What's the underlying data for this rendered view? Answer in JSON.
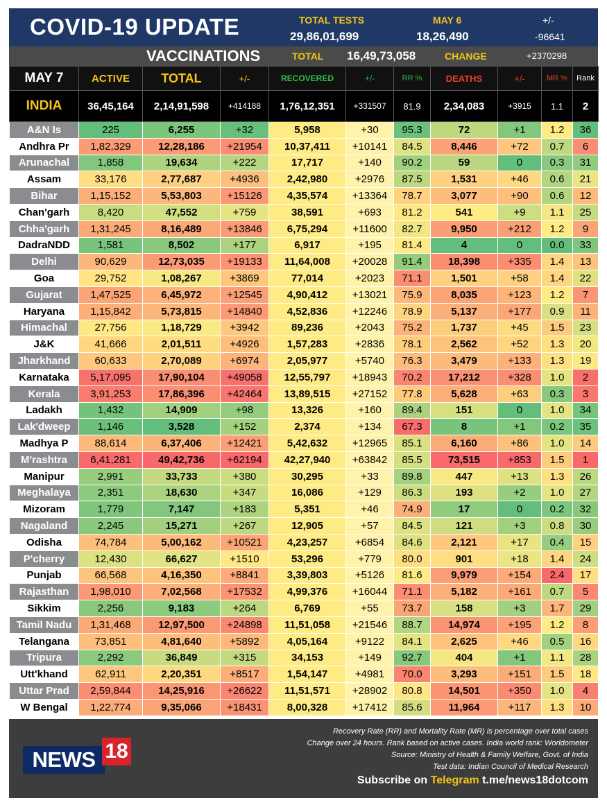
{
  "header": {
    "title": "COVID-19 UPDATE",
    "total_tests_label": "TOTAL TESTS",
    "total_tests": "29,86,01,699",
    "may6_label": "MAY 6",
    "may6_value": "18,26,490",
    "change_label": "+/-",
    "change_value": "-96641"
  },
  "vaccinations": {
    "title": "VACCINATIONS",
    "total_label": "TOTAL",
    "total": "16,49,73,058",
    "change_label": "CHANGE",
    "change": "+2370298"
  },
  "columns": {
    "date": "MAY 7",
    "active": "ACTIVE",
    "total": "TOTAL",
    "total_change": "+/-",
    "recovered": "RECOVERED",
    "recovered_change": "+/-",
    "rr": "RR %",
    "deaths": "DEATHS",
    "deaths_change": "+/-",
    "mr": "MR %",
    "rank": "Rank"
  },
  "india": {
    "name": "INDIA",
    "active": "36,45,164",
    "total": "2,14,91,598",
    "total_change": "+414188",
    "recovered": "1,76,12,351",
    "recovered_change": "+331507",
    "rr": "81.9",
    "deaths": "2,34,083",
    "deaths_change": "+3915",
    "mr": "1.1",
    "rank": "2"
  },
  "states": [
    {
      "name": "A&N Is",
      "active": "225",
      "total": "6,255",
      "total_change": "+32",
      "recovered": "5,958",
      "recovered_change": "+30",
      "rr": "95.3",
      "deaths": "72",
      "deaths_change": "+1",
      "mr": "1.2",
      "rank": "36"
    },
    {
      "name": "Andhra Pr",
      "active": "1,82,329",
      "total": "12,28,186",
      "total_change": "+21954",
      "recovered": "10,37,411",
      "recovered_change": "+10141",
      "rr": "84.5",
      "deaths": "8,446",
      "deaths_change": "+72",
      "mr": "0.7",
      "rank": "6"
    },
    {
      "name": "Arunachal",
      "active": "1,858",
      "total": "19,634",
      "total_change": "+222",
      "recovered": "17,717",
      "recovered_change": "+140",
      "rr": "90.2",
      "deaths": "59",
      "deaths_change": "0",
      "mr": "0.3",
      "rank": "31"
    },
    {
      "name": "Assam",
      "active": "33,176",
      "total": "2,77,687",
      "total_change": "+4936",
      "recovered": "2,42,980",
      "recovered_change": "+2976",
      "rr": "87.5",
      "deaths": "1,531",
      "deaths_change": "+46",
      "mr": "0.6",
      "rank": "21"
    },
    {
      "name": "Bihar",
      "active": "1,15,152",
      "total": "5,53,803",
      "total_change": "+15126",
      "recovered": "4,35,574",
      "recovered_change": "+13364",
      "rr": "78.7",
      "deaths": "3,077",
      "deaths_change": "+90",
      "mr": "0.6",
      "rank": "12"
    },
    {
      "name": "Chan'garh",
      "active": "8,420",
      "total": "47,552",
      "total_change": "+759",
      "recovered": "38,591",
      "recovered_change": "+693",
      "rr": "81.2",
      "deaths": "541",
      "deaths_change": "+9",
      "mr": "1.1",
      "rank": "25"
    },
    {
      "name": "Chha'garh",
      "active": "1,31,245",
      "total": "8,16,489",
      "total_change": "+13846",
      "recovered": "6,75,294",
      "recovered_change": "+11600",
      "rr": "82.7",
      "deaths": "9,950",
      "deaths_change": "+212",
      "mr": "1.2",
      "rank": "9"
    },
    {
      "name": "DadraNDD",
      "active": "1,581",
      "total": "8,502",
      "total_change": "+177",
      "recovered": "6,917",
      "recovered_change": "+195",
      "rr": "81.4",
      "deaths": "4",
      "deaths_change": "0",
      "mr": "0.0",
      "rank": "33"
    },
    {
      "name": "Delhi",
      "active": "90,629",
      "total": "12,73,035",
      "total_change": "+19133",
      "recovered": "11,64,008",
      "recovered_change": "+20028",
      "rr": "91.4",
      "deaths": "18,398",
      "deaths_change": "+335",
      "mr": "1.4",
      "rank": "13"
    },
    {
      "name": "Goa",
      "active": "29,752",
      "total": "1,08,267",
      "total_change": "+3869",
      "recovered": "77,014",
      "recovered_change": "+2023",
      "rr": "71.1",
      "deaths": "1,501",
      "deaths_change": "+58",
      "mr": "1.4",
      "rank": "22"
    },
    {
      "name": "Gujarat",
      "active": "1,47,525",
      "total": "6,45,972",
      "total_change": "+12545",
      "recovered": "4,90,412",
      "recovered_change": "+13021",
      "rr": "75.9",
      "deaths": "8,035",
      "deaths_change": "+123",
      "mr": "1.2",
      "rank": "7"
    },
    {
      "name": "Haryana",
      "active": "1,15,842",
      "total": "5,73,815",
      "total_change": "+14840",
      "recovered": "4,52,836",
      "recovered_change": "+12246",
      "rr": "78.9",
      "deaths": "5,137",
      "deaths_change": "+177",
      "mr": "0.9",
      "rank": "11"
    },
    {
      "name": "Himachal",
      "active": "27,756",
      "total": "1,18,729",
      "total_change": "+3942",
      "recovered": "89,236",
      "recovered_change": "+2043",
      "rr": "75.2",
      "deaths": "1,737",
      "deaths_change": "+45",
      "mr": "1.5",
      "rank": "23"
    },
    {
      "name": "J&K",
      "active": "41,666",
      "total": "2,01,511",
      "total_change": "+4926",
      "recovered": "1,57,283",
      "recovered_change": "+2836",
      "rr": "78.1",
      "deaths": "2,562",
      "deaths_change": "+52",
      "mr": "1.3",
      "rank": "20"
    },
    {
      "name": "Jharkhand",
      "active": "60,633",
      "total": "2,70,089",
      "total_change": "+6974",
      "recovered": "2,05,977",
      "recovered_change": "+5740",
      "rr": "76.3",
      "deaths": "3,479",
      "deaths_change": "+133",
      "mr": "1.3",
      "rank": "19"
    },
    {
      "name": "Karnataka",
      "active": "5,17,095",
      "total": "17,90,104",
      "total_change": "+49058",
      "recovered": "12,55,797",
      "recovered_change": "+18943",
      "rr": "70.2",
      "deaths": "17,212",
      "deaths_change": "+328",
      "mr": "1.0",
      "rank": "2"
    },
    {
      "name": "Kerala",
      "active": "3,91,253",
      "total": "17,86,396",
      "total_change": "+42464",
      "recovered": "13,89,515",
      "recovered_change": "+27152",
      "rr": "77.8",
      "deaths": "5,628",
      "deaths_change": "+63",
      "mr": "0.3",
      "rank": "3"
    },
    {
      "name": "Ladakh",
      "active": "1,432",
      "total": "14,909",
      "total_change": "+98",
      "recovered": "13,326",
      "recovered_change": "+160",
      "rr": "89.4",
      "deaths": "151",
      "deaths_change": "0",
      "mr": "1.0",
      "rank": "34"
    },
    {
      "name": "Lak'dweep",
      "active": "1,146",
      "total": "3,528",
      "total_change": "+152",
      "recovered": "2,374",
      "recovered_change": "+134",
      "rr": "67.3",
      "deaths": "8",
      "deaths_change": "+1",
      "mr": "0.2",
      "rank": "35"
    },
    {
      "name": "Madhya P",
      "active": "88,614",
      "total": "6,37,406",
      "total_change": "+12421",
      "recovered": "5,42,632",
      "recovered_change": "+12965",
      "rr": "85.1",
      "deaths": "6,160",
      "deaths_change": "+86",
      "mr": "1.0",
      "rank": "14"
    },
    {
      "name": "M'rashtra",
      "active": "6,41,281",
      "total": "49,42,736",
      "total_change": "+62194",
      "recovered": "42,27,940",
      "recovered_change": "+63842",
      "rr": "85.5",
      "deaths": "73,515",
      "deaths_change": "+853",
      "mr": "1.5",
      "rank": "1"
    },
    {
      "name": "Manipur",
      "active": "2,991",
      "total": "33,733",
      "total_change": "+380",
      "recovered": "30,295",
      "recovered_change": "+33",
      "rr": "89.8",
      "deaths": "447",
      "deaths_change": "+13",
      "mr": "1.3",
      "rank": "26"
    },
    {
      "name": "Meghalaya",
      "active": "2,351",
      "total": "18,630",
      "total_change": "+347",
      "recovered": "16,086",
      "recovered_change": "+129",
      "rr": "86.3",
      "deaths": "193",
      "deaths_change": "+2",
      "mr": "1.0",
      "rank": "27"
    },
    {
      "name": "Mizoram",
      "active": "1,779",
      "total": "7,147",
      "total_change": "+183",
      "recovered": "5,351",
      "recovered_change": "+46",
      "rr": "74.9",
      "deaths": "17",
      "deaths_change": "0",
      "mr": "0.2",
      "rank": "32"
    },
    {
      "name": "Nagaland",
      "active": "2,245",
      "total": "15,271",
      "total_change": "+267",
      "recovered": "12,905",
      "recovered_change": "+57",
      "rr": "84.5",
      "deaths": "121",
      "deaths_change": "+3",
      "mr": "0.8",
      "rank": "30"
    },
    {
      "name": "Odisha",
      "active": "74,784",
      "total": "5,00,162",
      "total_change": "+10521",
      "recovered": "4,23,257",
      "recovered_change": "+6854",
      "rr": "84.6",
      "deaths": "2,121",
      "deaths_change": "+17",
      "mr": "0.4",
      "rank": "15"
    },
    {
      "name": "P'cherry",
      "active": "12,430",
      "total": "66,627",
      "total_change": "+1510",
      "recovered": "53,296",
      "recovered_change": "+779",
      "rr": "80.0",
      "deaths": "901",
      "deaths_change": "+18",
      "mr": "1.4",
      "rank": "24"
    },
    {
      "name": "Punjab",
      "active": "66,568",
      "total": "4,16,350",
      "total_change": "+8841",
      "recovered": "3,39,803",
      "recovered_change": "+5126",
      "rr": "81.6",
      "deaths": "9,979",
      "deaths_change": "+154",
      "mr": "2.4",
      "rank": "17"
    },
    {
      "name": "Rajasthan",
      "active": "1,98,010",
      "total": "7,02,568",
      "total_change": "+17532",
      "recovered": "4,99,376",
      "recovered_change": "+16044",
      "rr": "71.1",
      "deaths": "5,182",
      "deaths_change": "+161",
      "mr": "0.7",
      "rank": "5"
    },
    {
      "name": "Sikkim",
      "active": "2,256",
      "total": "9,183",
      "total_change": "+264",
      "recovered": "6,769",
      "recovered_change": "+55",
      "rr": "73.7",
      "deaths": "158",
      "deaths_change": "+3",
      "mr": "1.7",
      "rank": "29"
    },
    {
      "name": "Tamil Nadu",
      "active": "1,31,468",
      "total": "12,97,500",
      "total_change": "+24898",
      "recovered": "11,51,058",
      "recovered_change": "+21546",
      "rr": "88.7",
      "deaths": "14,974",
      "deaths_change": "+195",
      "mr": "1.2",
      "rank": "8"
    },
    {
      "name": "Telangana",
      "active": "73,851",
      "total": "4,81,640",
      "total_change": "+5892",
      "recovered": "4,05,164",
      "recovered_change": "+9122",
      "rr": "84.1",
      "deaths": "2,625",
      "deaths_change": "+46",
      "mr": "0.5",
      "rank": "16"
    },
    {
      "name": "Tripura",
      "active": "2,292",
      "total": "36,849",
      "total_change": "+315",
      "recovered": "34,153",
      "recovered_change": "+149",
      "rr": "92.7",
      "deaths": "404",
      "deaths_change": "+1",
      "mr": "1.1",
      "rank": "28"
    },
    {
      "name": "Utt'khand",
      "active": "62,911",
      "total": "2,20,351",
      "total_change": "+8517",
      "recovered": "1,54,147",
      "recovered_change": "+4981",
      "rr": "70.0",
      "deaths": "3,293",
      "deaths_change": "+151",
      "mr": "1.5",
      "rank": "18"
    },
    {
      "name": "Uttar Prad",
      "active": "2,59,844",
      "total": "14,25,916",
      "total_change": "+26622",
      "recovered": "11,51,571",
      "recovered_change": "+28902",
      "rr": "80.8",
      "deaths": "14,501",
      "deaths_change": "+350",
      "mr": "1.0",
      "rank": "4"
    },
    {
      "name": "W Bengal",
      "active": "1,22,774",
      "total": "9,35,066",
      "total_change": "+18431",
      "recovered": "8,00,328",
      "recovered_change": "+17412",
      "rr": "85.6",
      "deaths": "11,964",
      "deaths_change": "+117",
      "mr": "1.3",
      "rank": "10"
    }
  ],
  "footer": {
    "notes": [
      "Recovery Rate (RR) and Mortality Rate (MR) is percentage over total cases",
      "Change over 24 hours. Rank based on active cases. India world rank: Worldometer",
      "Source: Ministry of Health & Family Welfare, Govt. of India",
      "Test data: Indian Council of Medical Research"
    ],
    "subscribe_prefix": "Subscribe on",
    "subscribe_platform": "Telegram",
    "subscribe_link": "t.me/news18dotcom",
    "logo_text": "NEWS",
    "logo_number": "18"
  },
  "colors": {
    "header_bg": "#1f3866",
    "accent_yellow": "#f5c417",
    "recovered_green": "#2fbf4a",
    "deaths_red": "#e8402a"
  }
}
